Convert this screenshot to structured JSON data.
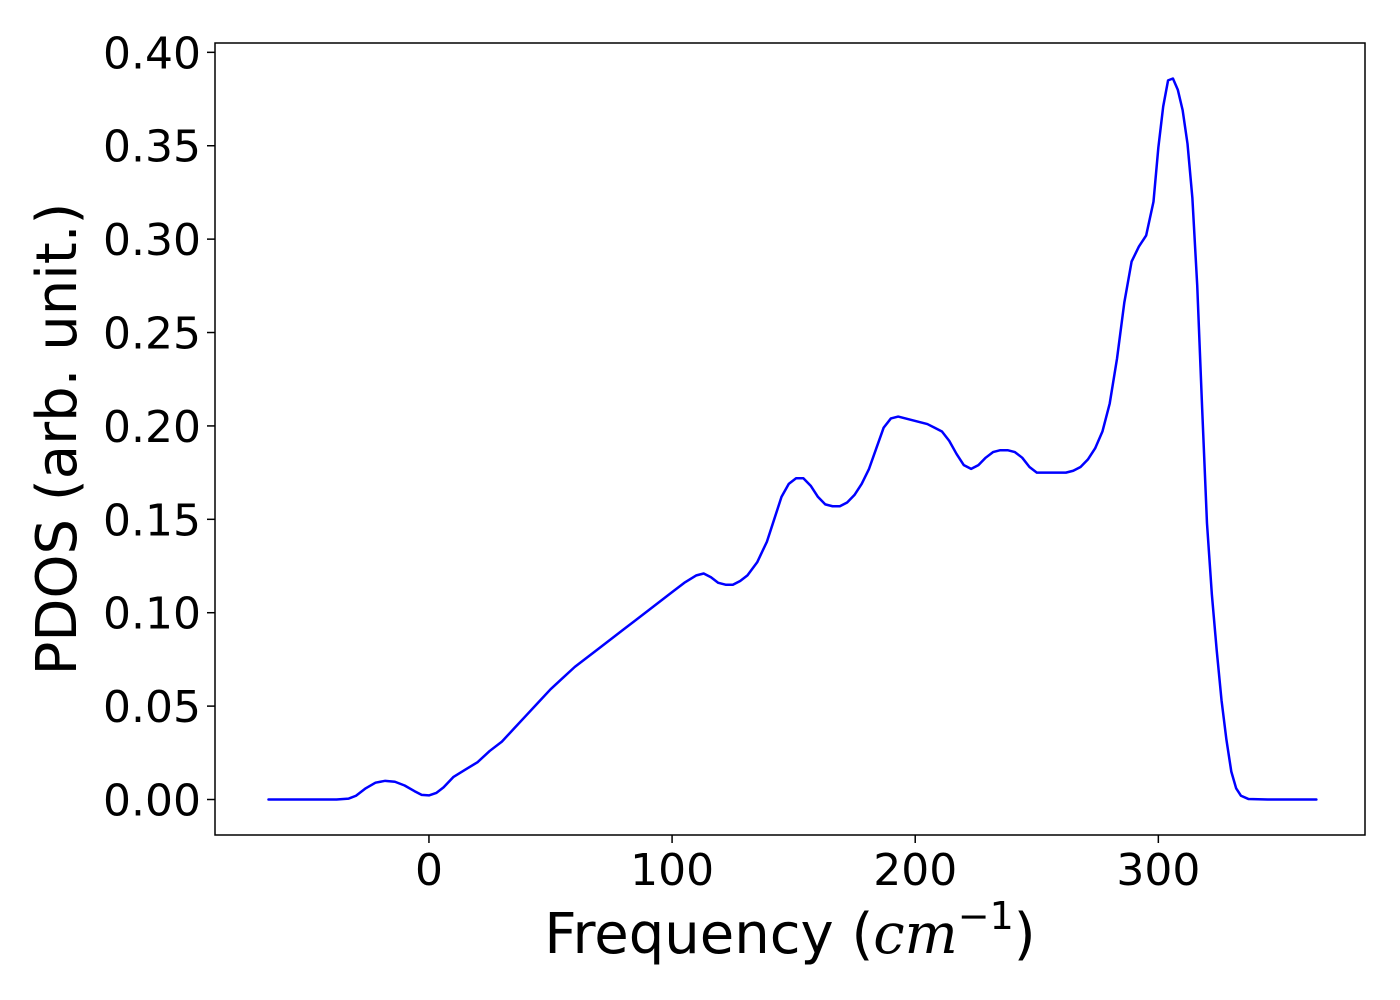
{
  "chart_data": {
    "type": "line",
    "xlabel": {
      "prefix": "Frequency (",
      "math": "cm",
      "superscript": "−1",
      "suffix": ")"
    },
    "ylabel": "PDOS (arb. unit.)",
    "xlim": [
      -88,
      385
    ],
    "ylim": [
      -0.019,
      0.405
    ],
    "x_ticks": [
      0,
      100,
      200,
      300
    ],
    "y_ticks": [
      0.0,
      0.05,
      0.1,
      0.15,
      0.2,
      0.25,
      0.3,
      0.35,
      0.4
    ],
    "x_tick_labels": [
      "0",
      "100",
      "200",
      "300"
    ],
    "y_tick_labels": [
      "0.00",
      "0.05",
      "0.10",
      "0.15",
      "0.20",
      "0.25",
      "0.30",
      "0.35",
      "0.40"
    ],
    "grid": false,
    "legend": "none",
    "series": [
      {
        "color": "#0000ff",
        "x": [
          -66,
          -50,
          -38,
          -33,
          -30,
          -26,
          -22,
          -18,
          -14,
          -10,
          -6,
          -3,
          0,
          3,
          6,
          10,
          15,
          20,
          25,
          30,
          35,
          40,
          45,
          50,
          55,
          60,
          70,
          80,
          90,
          100,
          105,
          110,
          113,
          116,
          119,
          122,
          125,
          128,
          131,
          135,
          139,
          142,
          145,
          148,
          151,
          154,
          157,
          160,
          163,
          166,
          169,
          172,
          175,
          178,
          181,
          184,
          187,
          190,
          193,
          196,
          199,
          202,
          205,
          208,
          211,
          214,
          217,
          220,
          223,
          226,
          229,
          232,
          235,
          238,
          241,
          244,
          247,
          250,
          253,
          256,
          259,
          262,
          265,
          268,
          271,
          274,
          277,
          280,
          283,
          286,
          289,
          292,
          295,
          298,
          300,
          302,
          304,
          306,
          308,
          310,
          312,
          314,
          316,
          318,
          320,
          322,
          324,
          326,
          328,
          330,
          332,
          334,
          337,
          345,
          365
        ],
        "y": [
          0.0,
          0.0,
          0.0,
          0.0005,
          0.002,
          0.006,
          0.009,
          0.01,
          0.0095,
          0.0075,
          0.0045,
          0.0025,
          0.0022,
          0.0035,
          0.0065,
          0.012,
          0.016,
          0.02,
          0.026,
          0.031,
          0.038,
          0.045,
          0.052,
          0.059,
          0.065,
          0.071,
          0.081,
          0.091,
          0.101,
          0.111,
          0.116,
          0.12,
          0.121,
          0.119,
          0.116,
          0.115,
          0.115,
          0.117,
          0.12,
          0.127,
          0.138,
          0.15,
          0.162,
          0.169,
          0.172,
          0.172,
          0.168,
          0.162,
          0.158,
          0.157,
          0.157,
          0.159,
          0.163,
          0.169,
          0.177,
          0.188,
          0.199,
          0.204,
          0.205,
          0.204,
          0.203,
          0.202,
          0.201,
          0.199,
          0.197,
          0.192,
          0.185,
          0.179,
          0.177,
          0.179,
          0.183,
          0.186,
          0.187,
          0.187,
          0.186,
          0.183,
          0.178,
          0.175,
          0.175,
          0.175,
          0.175,
          0.175,
          0.176,
          0.178,
          0.182,
          0.188,
          0.197,
          0.212,
          0.236,
          0.266,
          0.288,
          0.296,
          0.302,
          0.32,
          0.349,
          0.371,
          0.385,
          0.386,
          0.38,
          0.369,
          0.351,
          0.322,
          0.275,
          0.21,
          0.148,
          0.11,
          0.08,
          0.053,
          0.032,
          0.015,
          0.006,
          0.002,
          0.0003,
          0.0,
          0.0
        ]
      }
    ]
  }
}
